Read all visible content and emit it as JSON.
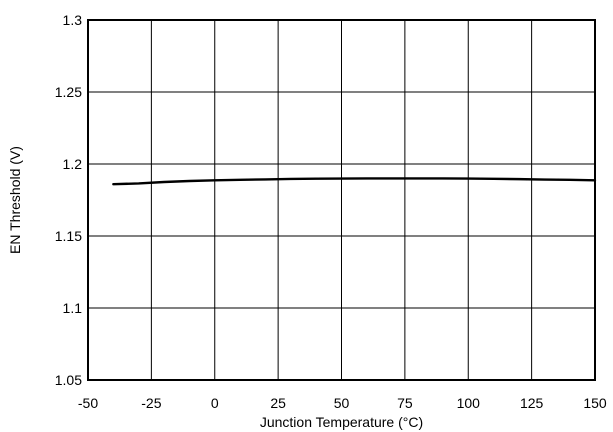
{
  "chart_data": {
    "type": "line",
    "title": "",
    "xlabel": "Junction Temperature (°C)",
    "ylabel": "EN Threshold (V)",
    "xlim": [
      -50,
      150
    ],
    "ylim": [
      1.05,
      1.3
    ],
    "x_ticks": [
      -50,
      -25,
      0,
      25,
      50,
      75,
      100,
      125,
      150
    ],
    "y_ticks": [
      1.05,
      1.1,
      1.15,
      1.2,
      1.25,
      1.3
    ],
    "x_tick_labels": [
      "-50",
      "-25",
      "0",
      "25",
      "50",
      "75",
      "100",
      "125",
      "150"
    ],
    "y_tick_labels": [
      "1.05",
      "1.1",
      "1.15",
      "1.2",
      "1.25",
      "1.3"
    ],
    "grid": true,
    "legend": "none",
    "colors": {
      "line": "#000000",
      "grid": "#000000",
      "frame": "#000000",
      "background": "#ffffff"
    },
    "series": [
      {
        "x": [
          -40,
          -30,
          -20,
          -10,
          0,
          10,
          20,
          30,
          40,
          50,
          60,
          70,
          80,
          90,
          100,
          110,
          120,
          130,
          140,
          150
        ],
        "y": [
          1.186,
          1.1865,
          1.1875,
          1.1882,
          1.1887,
          1.189,
          1.1893,
          1.1896,
          1.1898,
          1.1899,
          1.19,
          1.19,
          1.19,
          1.19,
          1.1899,
          1.1897,
          1.1895,
          1.1892,
          1.189,
          1.1887
        ]
      }
    ]
  }
}
